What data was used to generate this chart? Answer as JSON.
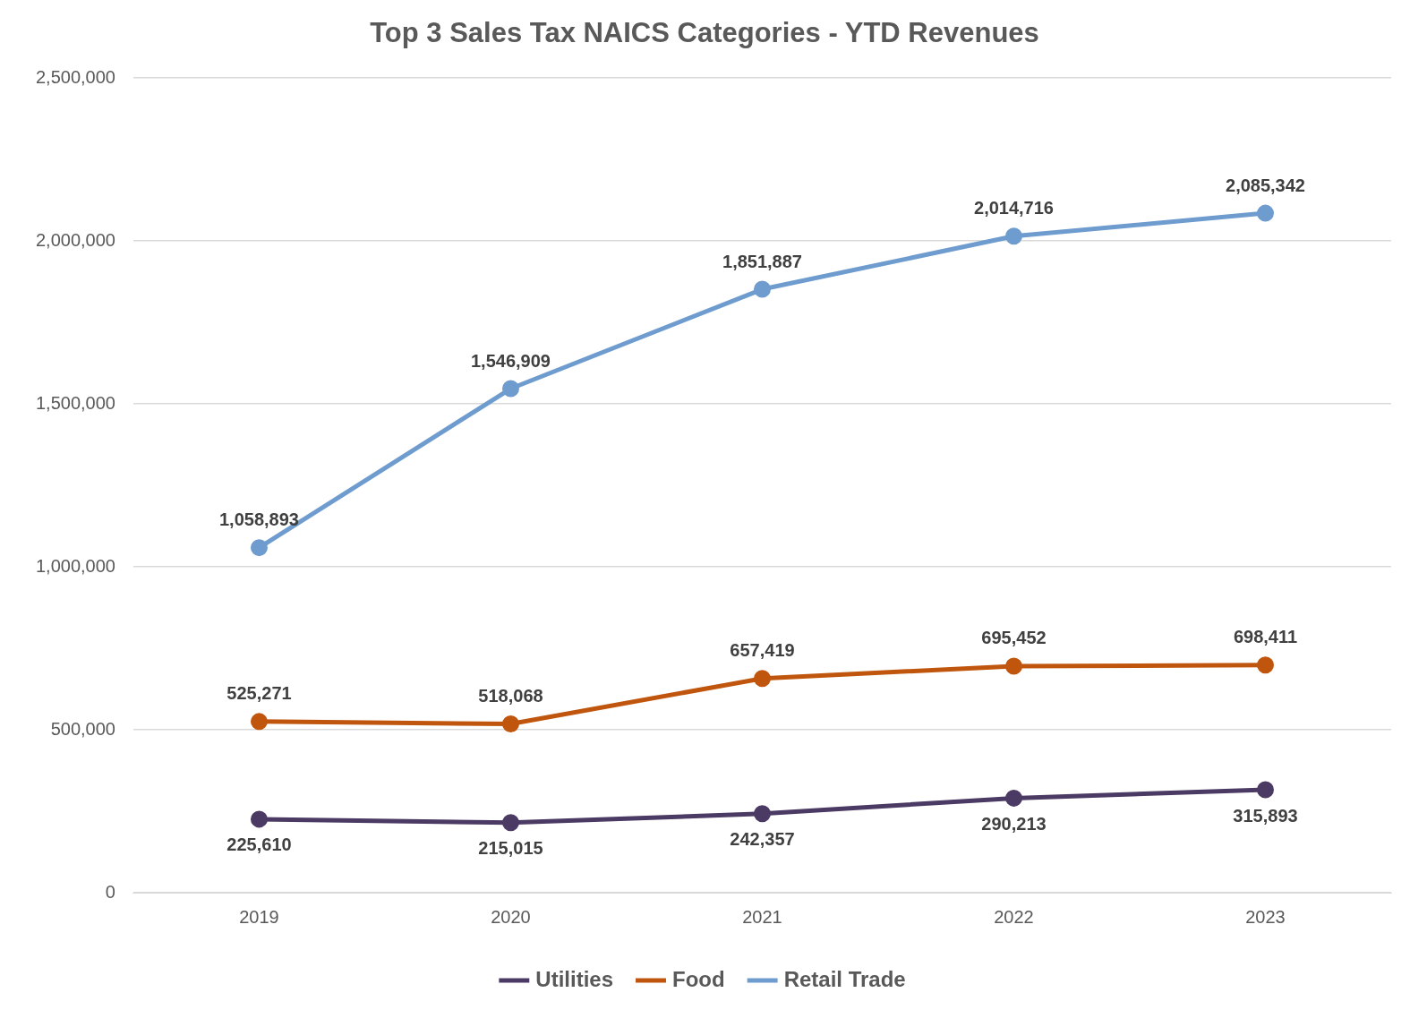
{
  "chart_data": {
    "type": "line",
    "title": "Top 3 Sales Tax NAICS Categories - YTD Revenues",
    "categories": [
      "2019",
      "2020",
      "2021",
      "2022",
      "2023"
    ],
    "series": [
      {
        "name": "Utilities",
        "color": "#4b3a63",
        "values": [
          225610,
          215015,
          242357,
          290213,
          315893
        ],
        "value_labels": [
          "225,610",
          "215,015",
          "242,357",
          "290,213",
          "315,893"
        ]
      },
      {
        "name": "Food",
        "color": "#c0560e",
        "values": [
          525271,
          518068,
          657419,
          695452,
          698411
        ],
        "value_labels": [
          "525,271",
          "518,068",
          "657,419",
          "695,452",
          "698,411"
        ]
      },
      {
        "name": "Retail Trade",
        "color": "#6f9ccf",
        "values": [
          1058893,
          1546909,
          1851887,
          2014716,
          2085342
        ],
        "value_labels": [
          "1,058,893",
          "1,546,909",
          "1,851,887",
          "2,014,716",
          "2,085,342"
        ]
      }
    ],
    "ylim": [
      0,
      2500000
    ],
    "yticks": [
      {
        "value": 0,
        "label": "0"
      },
      {
        "value": 500000,
        "label": "500,000"
      },
      {
        "value": 1000000,
        "label": "1,000,000"
      },
      {
        "value": 1500000,
        "label": "1,500,000"
      },
      {
        "value": 2000000,
        "label": "2,000,000"
      },
      {
        "value": 2500000,
        "label": "2,500,000"
      }
    ],
    "grid": "y",
    "legend": "bottom",
    "marker": "circle",
    "line_style": "solid"
  }
}
